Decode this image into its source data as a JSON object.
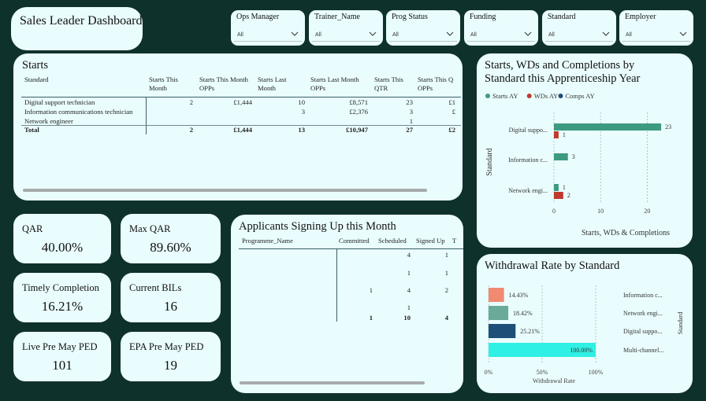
{
  "app_title": "Sales Leader Dashboard",
  "slicers": [
    {
      "label": "Ops Manager",
      "value": "All"
    },
    {
      "label": "Trainer_Name",
      "value": "All"
    },
    {
      "label": "Prog Status",
      "value": "All"
    },
    {
      "label": "Funding",
      "value": "All"
    },
    {
      "label": "Standard",
      "value": "All"
    },
    {
      "label": "Employer",
      "value": "All"
    }
  ],
  "starts": {
    "title": "Starts",
    "headers": {
      "standard": "Standard",
      "this_month": "Starts This Month",
      "this_month_opps": "Starts This Month OPPs",
      "last_month": "Starts Last Month",
      "last_month_opps": "Starts Last Month OPPs",
      "qtr": "Starts This QTR",
      "qtr_opps": "Starts This Q OPPs"
    },
    "rows": [
      {
        "standard": "Digital support technician",
        "this_month": "2",
        "this_month_opps": "£1,444",
        "last_month": "10",
        "last_month_opps": "£8,571",
        "qtr": "23",
        "qtr_opps": "£1"
      },
      {
        "standard": "Information communications technician",
        "this_month": "",
        "this_month_opps": "",
        "last_month": "3",
        "last_month_opps": "£2,376",
        "qtr": "3",
        "qtr_opps": "£"
      },
      {
        "standard": "Network engineer",
        "this_month": "",
        "this_month_opps": "",
        "last_month": "",
        "last_month_opps": "",
        "qtr": "1",
        "qtr_opps": ""
      }
    ],
    "total": {
      "standard": "Total",
      "this_month": "2",
      "this_month_opps": "£1,444",
      "last_month": "13",
      "last_month_opps": "£10,947",
      "qtr": "27",
      "qtr_opps": "£2"
    }
  },
  "kpis": {
    "qar": {
      "label": "QAR",
      "value": "40.00%"
    },
    "max_qar": {
      "label": "Max QAR",
      "value": "89.60%"
    },
    "timely_completion": {
      "label": "Timely Completion",
      "value": "16.21%"
    },
    "current_bils": {
      "label": "Current BILs",
      "value": "16"
    },
    "live_pre_may_ped": {
      "label": "Live Pre May PED",
      "value": "101"
    },
    "epa_pre_may_ped": {
      "label": "EPA Pre May PED",
      "value": "19"
    }
  },
  "applicants": {
    "title": "Applicants Signing Up this Month",
    "headers": {
      "programme": "Programme_Name",
      "committed": "Committed",
      "scheduled": "Scheduled",
      "signed_up": "Signed Up",
      "extra": "T"
    },
    "rows": [
      {
        "programme": "",
        "committed": "",
        "scheduled": "4",
        "signed_up": "1"
      },
      {
        "programme": "",
        "committed": "",
        "scheduled": "1",
        "signed_up": "1"
      },
      {
        "programme": "",
        "committed": "1",
        "scheduled": "4",
        "signed_up": "2"
      },
      {
        "programme": "",
        "committed": "",
        "scheduled": "1",
        "signed_up": ""
      }
    ],
    "total": {
      "committed": "1",
      "scheduled": "10",
      "signed_up": "4"
    }
  },
  "swc_chart": {
    "title_line1": "Starts, WDs and Completions by",
    "title_line2": "Standard this Apprenticeship Year",
    "chart_data": {
      "type": "bar",
      "orientation": "horizontal",
      "categories": [
        "Digital suppo...",
        "Information c...",
        "Network engi..."
      ],
      "series": [
        {
          "name": "Starts AY",
          "color": "#3d9a82",
          "values": [
            23,
            3,
            1
          ]
        },
        {
          "name": "WDs AY",
          "color": "#c0392b",
          "values": [
            1,
            null,
            2
          ]
        },
        {
          "name": "Comps AY",
          "color": "#1e4f78",
          "values": [
            null,
            null,
            null
          ]
        }
      ],
      "xlabel": "Starts, WDs & Completions",
      "ylabel": "Standard",
      "xlim": [
        0,
        24
      ],
      "xticks": [
        "0",
        "10",
        "20"
      ],
      "legend": "top-left"
    }
  },
  "wr_chart": {
    "title": "Withdrawal Rate by Standard",
    "chart_data": {
      "type": "bar",
      "orientation": "horizontal",
      "categories": [
        "Information c...",
        "Network engi...",
        "Digital suppo...",
        "Multi-channel..."
      ],
      "values": [
        14.43,
        18.42,
        25.21,
        100.0
      ],
      "labels": [
        "14.43%",
        "18.42%",
        "25.21%",
        "100.00%"
      ],
      "colors": [
        "#f08a70",
        "#6aaa99",
        "#1e4f78",
        "#2ef0e4"
      ],
      "xlabel": "Withdrawal Rate",
      "ylabel": "Standard",
      "xlim": [
        0,
        100
      ],
      "xticks": [
        "0%",
        "50%",
        "100%"
      ]
    }
  }
}
